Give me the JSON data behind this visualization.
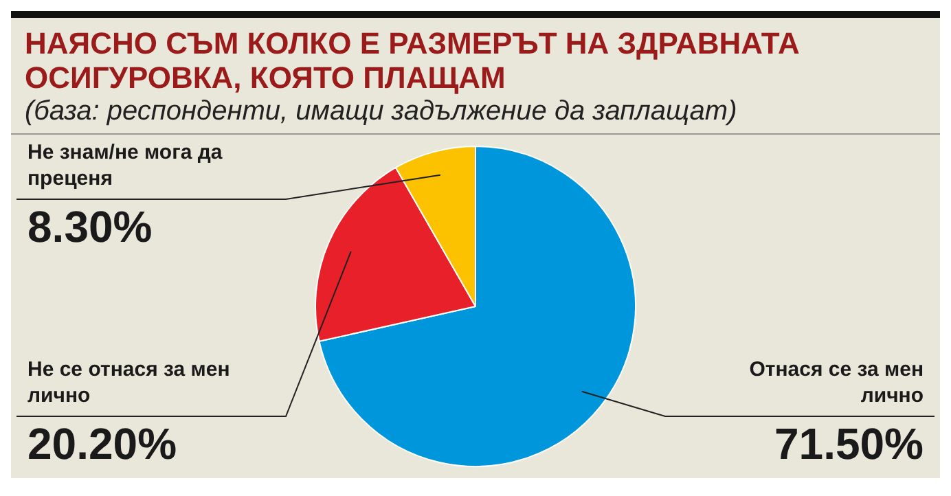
{
  "chart_data": {
    "type": "pie",
    "title": "НАЯСНО СЪМ КОЛКО Е РАЗМЕРЪТ НА ЗДРАВНАТА ОСИГУРОВКА, КОЯТО ПЛАЩАМ",
    "subtitle": "(база: респонденти, имащи задължение да заплащат)",
    "categories": [
      "Отнася се за мен лично",
      "Не се отнася за мен лично",
      "Не знам/не мога да преценя"
    ],
    "values": [
      71.5,
      20.2,
      8.3
    ],
    "value_labels": [
      "71.50%",
      "20.20%",
      "8.30%"
    ],
    "colors": [
      "#0096dc",
      "#e8202a",
      "#fcc200"
    ],
    "legend": false
  }
}
